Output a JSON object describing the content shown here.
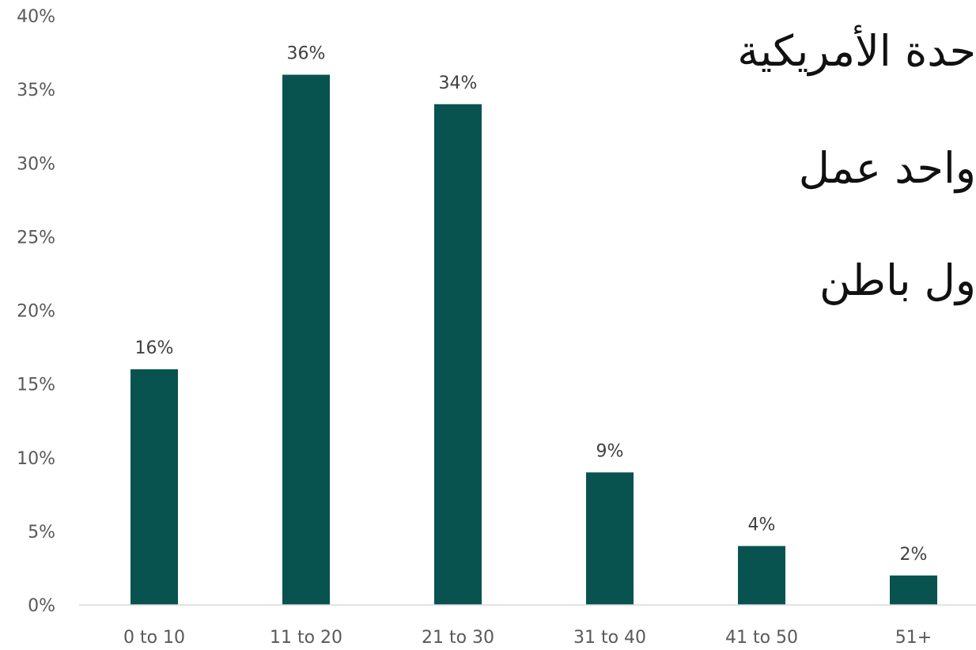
{
  "chart_data": {
    "type": "bar",
    "categories": [
      "0 to 10",
      "11 to 20",
      "21 to 30",
      "31 to 40",
      "41 to 50",
      "51+"
    ],
    "values": [
      16,
      36,
      34,
      9,
      4,
      2
    ],
    "data_labels": [
      "16%",
      "36%",
      "34%",
      "9%",
      "4%",
      "2%"
    ],
    "y_ticks": [
      0,
      5,
      10,
      15,
      20,
      25,
      30,
      35,
      40
    ],
    "y_tick_labels": [
      "0%",
      "5%",
      "10%",
      "15%",
      "20%",
      "25%",
      "30%",
      "35%",
      "40%"
    ],
    "ylim": [
      0,
      40
    ],
    "grid": false,
    "bar_color": "#08534f",
    "title": "",
    "xlabel": "",
    "ylabel": ""
  },
  "overlay_text": {
    "line_1": "حدة الأمريكية",
    "line_2": "واحد عمل",
    "line_3": "ول باطن"
  }
}
